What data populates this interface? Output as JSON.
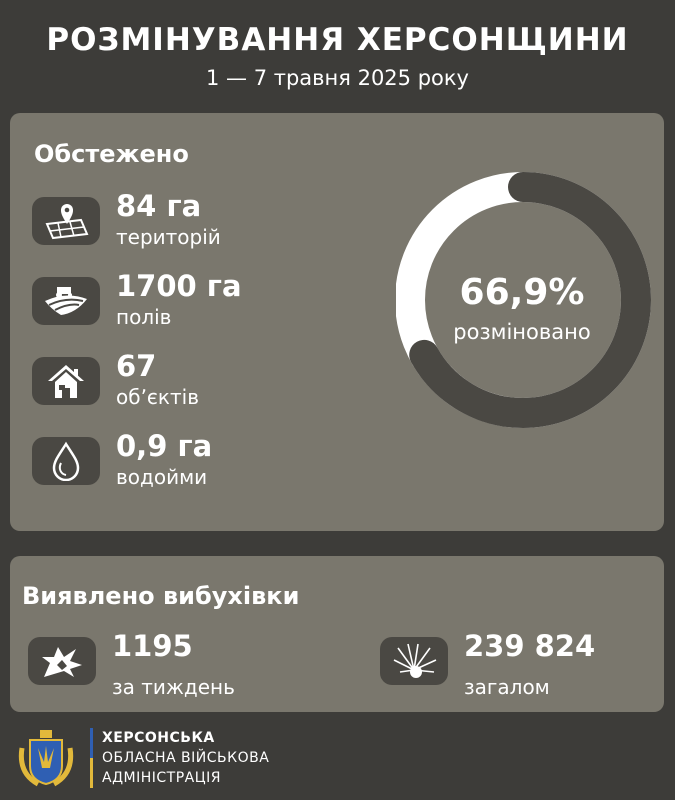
{
  "header": {
    "title": "РОЗМІНУВАННЯ ХЕРСОНЩИНИ",
    "subtitle": "1 — 7 травня 2025 року"
  },
  "surveyed": {
    "heading": "Обстежено",
    "items": [
      {
        "value": "84 га",
        "label": "територій",
        "icon": "map-pin-icon"
      },
      {
        "value": "1700 га",
        "label": "полів",
        "icon": "field-tractor-icon"
      },
      {
        "value": "67",
        "label": "обʼєктів",
        "icon": "house-icon"
      },
      {
        "value": "0,9 га",
        "label": "водойми",
        "icon": "water-drop-icon"
      }
    ]
  },
  "donut": {
    "percent": 66.9,
    "value": "66,9%",
    "label": "розміновано",
    "colors": {
      "filled": "#4a4843",
      "rest": "#ffffff"
    }
  },
  "explosives": {
    "heading": "Виявлено вибухівки",
    "items": [
      {
        "value": "1195",
        "label": "за тиждень",
        "icon": "explosion-icon"
      },
      {
        "value": "239 824",
        "label": "загалом",
        "icon": "blast-burst-icon"
      }
    ]
  },
  "footer": {
    "line1": "ХЕРСОНСЬКА",
    "line2": "ОБЛАСНА ВІЙСЬКОВА",
    "line3": "АДМІНІСТРАЦІЯ"
  }
}
